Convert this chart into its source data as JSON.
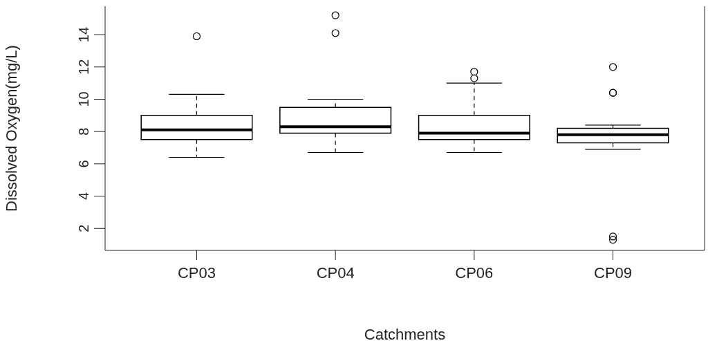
{
  "chart_data": {
    "type": "box",
    "xlabel": "Catchments",
    "ylabel": "Dissolved Oxygen(mg/L)",
    "categories": [
      "CP03",
      "CP04",
      "CP06",
      "CP09"
    ],
    "boxes": [
      {
        "low": 6.4,
        "q1": 7.5,
        "median": 8.1,
        "q3": 9.0,
        "high": 10.3,
        "outliers": [
          13.9
        ]
      },
      {
        "low": 6.7,
        "q1": 7.9,
        "median": 8.3,
        "q3": 9.5,
        "high": 10.0,
        "outliers": [
          15.2,
          14.1
        ]
      },
      {
        "low": 6.7,
        "q1": 7.5,
        "median": 7.9,
        "q3": 9.0,
        "high": 11.0,
        "outliers": [
          11.7,
          11.3
        ]
      },
      {
        "low": 6.9,
        "q1": 7.3,
        "median": 7.8,
        "q3": 8.2,
        "high": 8.4,
        "outliers": [
          12.0,
          10.4,
          10.4,
          1.5,
          1.3
        ]
      }
    ],
    "color": "#000000",
    "ylim": [
      0.64,
      15.76
    ],
    "yticks": [
      2,
      4,
      6,
      8,
      10,
      12,
      14
    ],
    "grid": false
  }
}
